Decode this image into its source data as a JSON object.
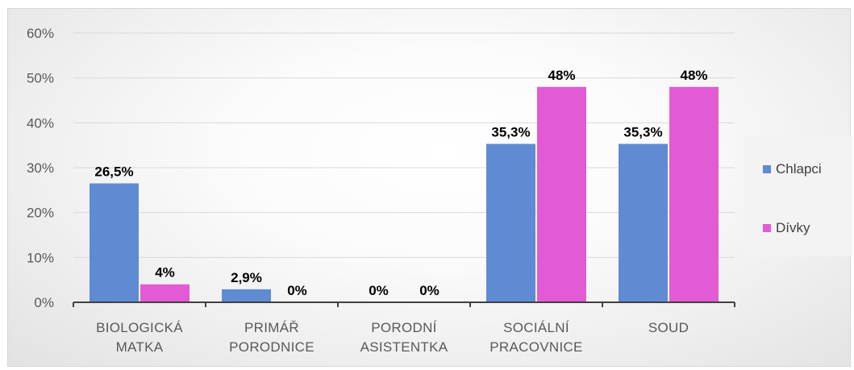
{
  "chart_data": {
    "type": "bar",
    "categories": [
      [
        "BIOLOGICKÁ",
        "MATKA"
      ],
      [
        "PRIMÁŘ",
        "PORODNICE"
      ],
      [
        "PORODNÍ",
        "ASISTENTKA"
      ],
      [
        "SOCIÁLNÍ",
        "PRACOVNICE"
      ],
      [
        "SOUD"
      ]
    ],
    "series": [
      {
        "name": "Chlapci",
        "color": "#5f8bd3",
        "values": [
          26.5,
          2.9,
          0,
          35.3,
          35.3
        ],
        "labels": [
          "26,5%",
          "2,9%",
          "0%",
          "35,3%",
          "35,3%"
        ]
      },
      {
        "name": "Dívky",
        "color": "#e25bd4",
        "values": [
          4,
          0,
          0,
          48,
          48
        ],
        "labels": [
          "4%",
          "0%",
          "0%",
          "48%",
          "48%"
        ]
      }
    ],
    "ylim": [
      0,
      60
    ],
    "yticks": [
      "0%",
      "10%",
      "20%",
      "30%",
      "40%",
      "50%",
      "60%"
    ],
    "grid": true,
    "legend_position": "right"
  }
}
